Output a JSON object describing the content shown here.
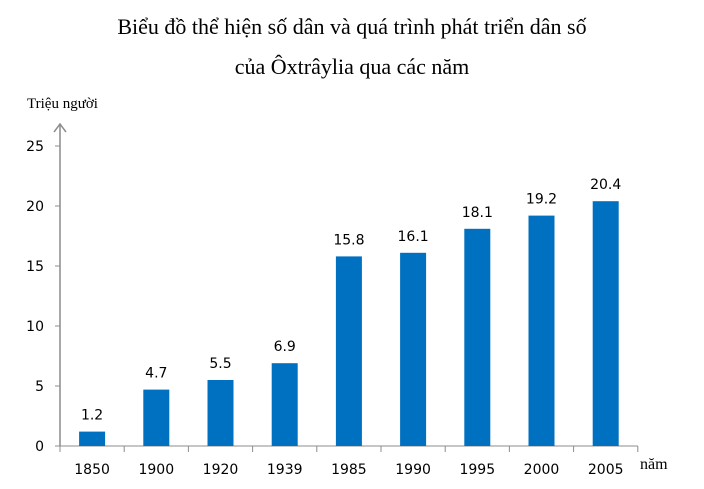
{
  "chart_data": {
    "type": "bar",
    "title": "Biểu đồ thể hiện số dân và quá trình phát triển dân số",
    "subtitle": "của Ôxtrâylia qua các năm",
    "xlabel": "năm",
    "ylabel": "Triệu người",
    "categories": [
      "1850",
      "1900",
      "1920",
      "1939",
      "1985",
      "1990",
      "1995",
      "2000",
      "2005"
    ],
    "values": [
      1.2,
      4.7,
      5.5,
      6.9,
      15.8,
      16.1,
      18.1,
      19.2,
      20.4
    ],
    "value_labels": [
      "1.2",
      "4.7",
      "5.5",
      "6.9",
      "15.8",
      "16.1",
      "18.1",
      "19.2",
      "20.4"
    ],
    "ylim": [
      0,
      25
    ],
    "yticks": [
      0,
      5,
      10,
      15,
      20,
      25
    ],
    "grid": false,
    "legend": null,
    "bar_color": "#0070C0",
    "axis_color": "#8C8C8C"
  }
}
